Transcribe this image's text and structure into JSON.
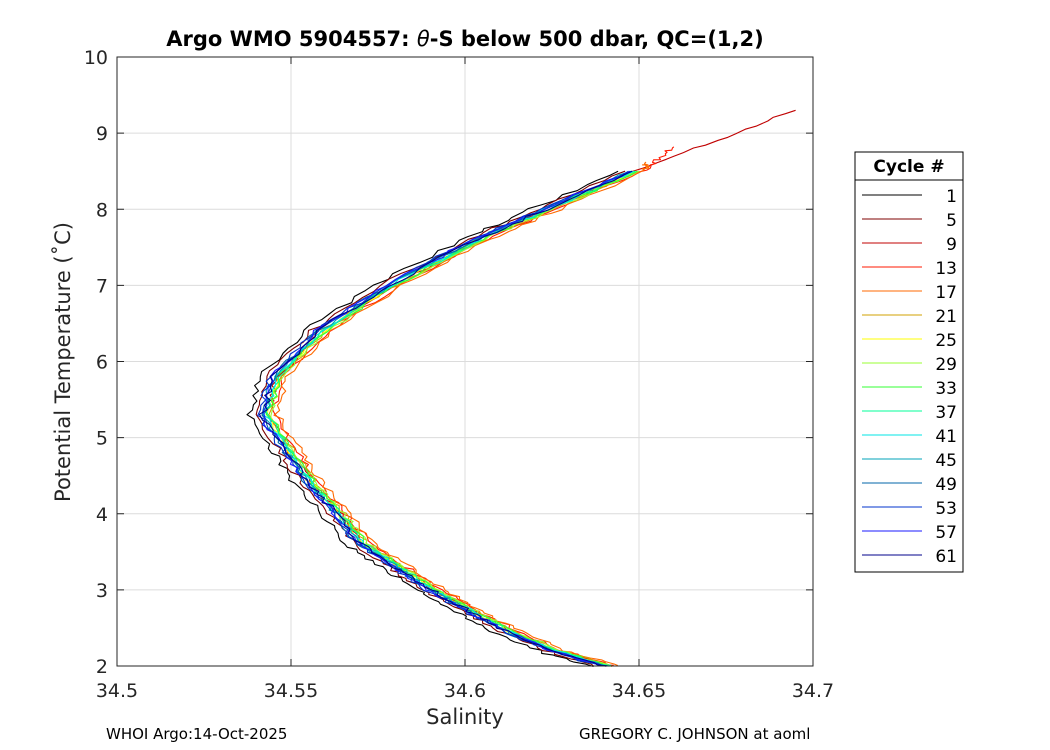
{
  "chart_data": {
    "type": "line",
    "title_prefix": "Argo WMO 5904557: ",
    "title_symbol": "θ",
    "title_suffix": "-S below 500 dbar,  QC=(1,2)",
    "xlabel": "Salinity",
    "ylabel": "Potential Temperature (˚C)",
    "xlim": [
      34.5,
      34.7
    ],
    "ylim": [
      2,
      10
    ],
    "xticks": [
      34.5,
      34.55,
      34.6,
      34.65,
      34.7
    ],
    "xtick_labels": [
      "34.5",
      "34.55",
      "34.6",
      "34.65",
      "34.7"
    ],
    "yticks": [
      2,
      3,
      4,
      5,
      6,
      7,
      8,
      9,
      10
    ],
    "ytick_labels": [
      "2",
      "3",
      "4",
      "5",
      "6",
      "7",
      "8",
      "9",
      "10"
    ],
    "grid": true,
    "legend_title": "Cycle #",
    "legend_position": "right",
    "base_curve": [
      {
        "s": 34.64,
        "t": 2.0
      },
      {
        "s": 34.625,
        "t": 2.2
      },
      {
        "s": 34.61,
        "t": 2.5
      },
      {
        "s": 34.6,
        "t": 2.75
      },
      {
        "s": 34.59,
        "t": 3.0
      },
      {
        "s": 34.58,
        "t": 3.3
      },
      {
        "s": 34.57,
        "t": 3.6
      },
      {
        "s": 34.563,
        "t": 4.0
      },
      {
        "s": 34.555,
        "t": 4.4
      },
      {
        "s": 34.549,
        "t": 4.8
      },
      {
        "s": 34.542,
        "t": 5.3
      },
      {
        "s": 34.545,
        "t": 5.8
      },
      {
        "s": 34.558,
        "t": 6.4
      },
      {
        "s": 34.578,
        "t": 7.0
      },
      {
        "s": 34.603,
        "t": 7.6
      },
      {
        "s": 34.623,
        "t": 8.0
      },
      {
        "s": 34.648,
        "t": 8.5
      }
    ],
    "series": [
      {
        "name": "1",
        "color": "#000000",
        "salinity_offset": -0.004,
        "extend_to": null
      },
      {
        "name": "5",
        "color": "#7f0000",
        "salinity_offset": -0.002,
        "extend_to": null
      },
      {
        "name": "9",
        "color": "#c00000",
        "salinity_offset": 0.001,
        "extend_to": {
          "s": 34.695,
          "t": 9.3
        }
      },
      {
        "name": "13",
        "color": "#ff1a00",
        "salinity_offset": 0.003,
        "extend_to": {
          "s": 34.66,
          "t": 8.82
        }
      },
      {
        "name": "17",
        "color": "#ff6a00",
        "salinity_offset": 0.004,
        "extend_to": {
          "s": 34.652,
          "t": 8.62
        }
      },
      {
        "name": "21",
        "color": "#d0a000",
        "salinity_offset": 0.002,
        "extend_to": null
      },
      {
        "name": "25",
        "color": "#ffff00",
        "salinity_offset": 0.001,
        "extend_to": null
      },
      {
        "name": "29",
        "color": "#99ff33",
        "salinity_offset": 0.002,
        "extend_to": null
      },
      {
        "name": "33",
        "color": "#33ff33",
        "salinity_offset": 0.0015,
        "extend_to": null
      },
      {
        "name": "37",
        "color": "#00ff99",
        "salinity_offset": 0.001,
        "extend_to": null
      },
      {
        "name": "41",
        "color": "#00e6e6",
        "salinity_offset": 0.0005,
        "extend_to": null
      },
      {
        "name": "45",
        "color": "#00a3b8",
        "salinity_offset": 0.0,
        "extend_to": null
      },
      {
        "name": "49",
        "color": "#0066aa",
        "salinity_offset": -0.0005,
        "extend_to": null
      },
      {
        "name": "53",
        "color": "#0033cc",
        "salinity_offset": -0.001,
        "extend_to": null
      },
      {
        "name": "57",
        "color": "#1a1aff",
        "salinity_offset": -0.0005,
        "extend_to": null
      },
      {
        "name": "61",
        "color": "#00008b",
        "salinity_offset": 0.0,
        "extend_to": null
      }
    ]
  },
  "footer": {
    "left": "WHOI Argo:14-Oct-2025",
    "right": "GREGORY C. JOHNSON at aoml"
  }
}
